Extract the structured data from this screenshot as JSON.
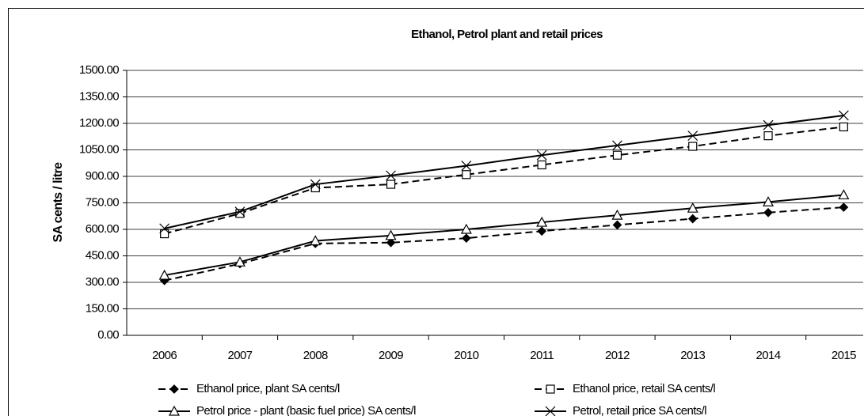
{
  "chart_data": {
    "type": "line",
    "title": "Ethanol, Petrol plant and retail prices",
    "y_label": "SA cents / litre",
    "categories": [
      "2006",
      "2007",
      "2008",
      "2009",
      "2010",
      "2011",
      "2012",
      "2013",
      "2014",
      "2015"
    ],
    "series": [
      {
        "name": "Ethanol price, plant SA cents/l",
        "color": "#000000",
        "dashed": true,
        "marker": "diamond",
        "values": [
          310,
          405,
          520,
          525,
          550,
          590,
          625,
          660,
          695,
          725
        ]
      },
      {
        "name": "Ethanol price, retail SA cents/l",
        "color": "#000000",
        "dashed": true,
        "marker": "square",
        "values": [
          575,
          690,
          835,
          855,
          910,
          965,
          1020,
          1070,
          1130,
          1180
        ]
      },
      {
        "name": "Petrol price - plant (basic fuel price) SA cents/l",
        "color": "#000000",
        "dashed": false,
        "marker": "triangle",
        "values": [
          340,
          415,
          535,
          565,
          600,
          640,
          680,
          720,
          755,
          795
        ]
      },
      {
        "name": "Petrol, retail price SA cents/l",
        "color": "#000000",
        "dashed": false,
        "marker": "x",
        "values": [
          605,
          700,
          855,
          905,
          960,
          1020,
          1075,
          1130,
          1190,
          1245
        ]
      }
    ],
    "ylim": [
      0,
      1500
    ],
    "yticks": [
      {
        "value": 0,
        "label": "0.00"
      },
      {
        "value": 150,
        "label": "150.00"
      },
      {
        "value": 300,
        "label": "300.00"
      },
      {
        "value": 450,
        "label": "450.00"
      },
      {
        "value": 600,
        "label": "600.00"
      },
      {
        "value": 750,
        "label": "750.00"
      },
      {
        "value": 900,
        "label": "900.00"
      },
      {
        "value": 1050,
        "label": "1050.00"
      },
      {
        "value": 1200,
        "label": "1200.00"
      },
      {
        "value": 1350,
        "label": "1350.00"
      },
      {
        "value": 1500,
        "label": "1500.00"
      }
    ],
    "grid": true,
    "legend": "bottom"
  }
}
